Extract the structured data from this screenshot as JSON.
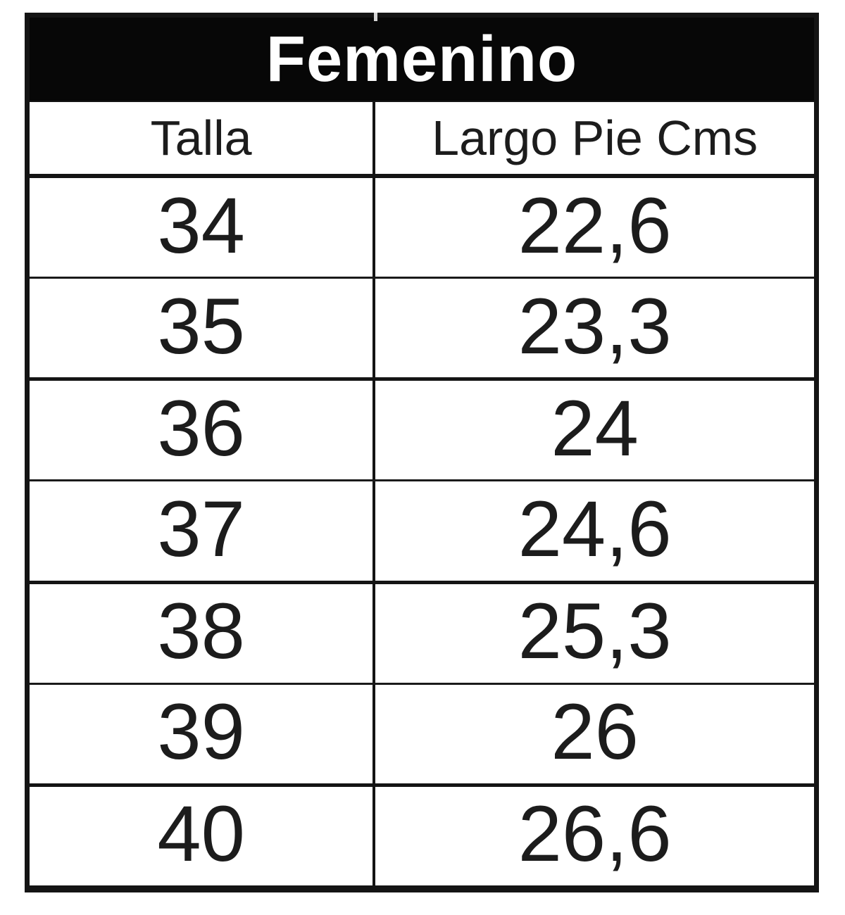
{
  "colors": {
    "title_band_bg": "#070707",
    "title_text": "#ffffff",
    "border": "#141414",
    "cell_text": "#1c1c1c",
    "table_bg": "#ffffff"
  },
  "chart_data": {
    "type": "table",
    "title": "Femenino",
    "columns": [
      "Talla",
      "Largo Pie Cms"
    ],
    "rows": [
      [
        "34",
        "22,6"
      ],
      [
        "35",
        "23,3"
      ],
      [
        "36",
        "24"
      ],
      [
        "37",
        "24,6"
      ],
      [
        "38",
        "25,3"
      ],
      [
        "39",
        "26"
      ],
      [
        "40",
        "26,6"
      ]
    ]
  }
}
